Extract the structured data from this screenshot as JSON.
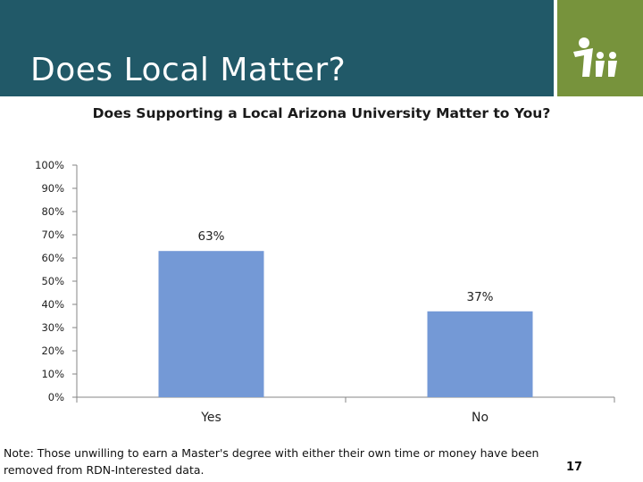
{
  "slide": {
    "title": "Does Local Matter?",
    "footnote": "Note: Those unwilling to earn a Master's degree with either their own time or money have been removed from RDN-Interested data.",
    "page_number": "17"
  },
  "colors": {
    "header": "#215968",
    "logo_bg": "#77933c",
    "bar": "#7499d6"
  },
  "icons": {
    "logo": "people-figures-logo-icon"
  },
  "chart_data": {
    "type": "bar",
    "title": "Does Supporting a Local Arizona University Matter to You?",
    "categories": [
      "Yes",
      "No"
    ],
    "values": [
      63,
      37
    ],
    "data_labels": [
      "63%",
      "37%"
    ],
    "ylim": [
      0,
      100
    ],
    "yticks": [
      "0%",
      "10%",
      "20%",
      "30%",
      "40%",
      "50%",
      "60%",
      "70%",
      "80%",
      "90%",
      "100%"
    ],
    "xlabel": "",
    "ylabel": "",
    "grid": false,
    "legend": "none"
  }
}
